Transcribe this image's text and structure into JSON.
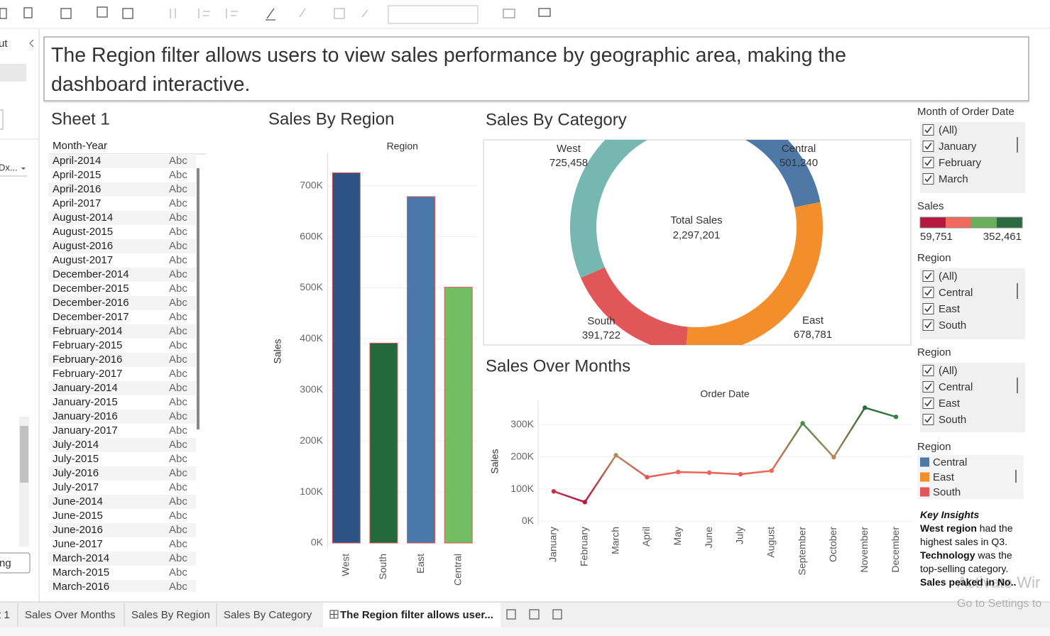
{
  "sidebar": {
    "labels": [
      "ut",
      "Dx...",
      "ng"
    ]
  },
  "header": {
    "text": "The Region filter allows users to view sales performance by geographic area, making the dashboard interactive."
  },
  "sheet": {
    "title": "Sheet 1",
    "column": "Month-Year",
    "rows": [
      [
        "April-2014",
        "Abc"
      ],
      [
        "April-2015",
        "Abc"
      ],
      [
        "April-2016",
        "Abc"
      ],
      [
        "April-2017",
        "Abc"
      ],
      [
        "August-2014",
        "Abc"
      ],
      [
        "August-2015",
        "Abc"
      ],
      [
        "August-2016",
        "Abc"
      ],
      [
        "August-2017",
        "Abc"
      ],
      [
        "December-2014",
        "Abc"
      ],
      [
        "December-2015",
        "Abc"
      ],
      [
        "December-2016",
        "Abc"
      ],
      [
        "December-2017",
        "Abc"
      ],
      [
        "February-2014",
        "Abc"
      ],
      [
        "February-2015",
        "Abc"
      ],
      [
        "February-2016",
        "Abc"
      ],
      [
        "February-2017",
        "Abc"
      ],
      [
        "January-2014",
        "Abc"
      ],
      [
        "January-2015",
        "Abc"
      ],
      [
        "January-2016",
        "Abc"
      ],
      [
        "January-2017",
        "Abc"
      ],
      [
        "July-2014",
        "Abc"
      ],
      [
        "July-2015",
        "Abc"
      ],
      [
        "July-2016",
        "Abc"
      ],
      [
        "July-2017",
        "Abc"
      ],
      [
        "June-2014",
        "Abc"
      ],
      [
        "June-2015",
        "Abc"
      ],
      [
        "June-2016",
        "Abc"
      ],
      [
        "June-2017",
        "Abc"
      ],
      [
        "March-2014",
        "Abc"
      ],
      [
        "March-2015",
        "Abc"
      ],
      [
        "March-2016",
        "Abc"
      ]
    ]
  },
  "chart_data": [
    {
      "type": "bar",
      "title": "Sales By Region",
      "header": "Region",
      "ylabel": "Sales",
      "categories": [
        "West",
        "South",
        "East",
        "Central"
      ],
      "values": [
        725458,
        391722,
        678781,
        501240
      ],
      "colors": [
        "#2c5384",
        "#23693b",
        "#4a78a9",
        "#73bd63"
      ],
      "outline": "#e15759",
      "ylim": [
        0,
        765000
      ],
      "yticks": [
        {
          "value": 0,
          "label": "0K"
        },
        {
          "value": 100000,
          "label": "100K"
        },
        {
          "value": 200000,
          "label": "200K"
        },
        {
          "value": 300000,
          "label": "300K"
        },
        {
          "value": 400000,
          "label": "400K"
        },
        {
          "value": 500000,
          "label": "500K"
        },
        {
          "value": 600000,
          "label": "600K"
        },
        {
          "value": 700000,
          "label": "700K"
        }
      ],
      "grid": true
    },
    {
      "type": "pie",
      "title": "Sales By Category",
      "categories": [
        "Central",
        "East",
        "South",
        "West"
      ],
      "values": [
        501240,
        678781,
        391722,
        725458
      ],
      "value_labels": [
        "501,240",
        "678,781",
        "391,722",
        "725,458"
      ],
      "colors": [
        "#4e79a7",
        "#f28e2b",
        "#e15759",
        "#76b7b2"
      ],
      "center_title": "Total Sales",
      "total": 2297201,
      "total_label": "2,297,201"
    },
    {
      "type": "line",
      "title": "Sales Over Months",
      "header": "Order Date",
      "ylabel": "Sales",
      "categories": [
        "January",
        "February",
        "March",
        "April",
        "May",
        "June",
        "July",
        "August",
        "September",
        "October",
        "November",
        "December"
      ],
      "values": [
        93000,
        59751,
        205000,
        137000,
        153000,
        151000,
        146000,
        157000,
        304000,
        199000,
        352461,
        324000
      ],
      "ylim": [
        0,
        362000
      ],
      "yticks": [
        {
          "value": 0,
          "label": "0K"
        },
        {
          "value": 100000,
          "label": "100K"
        },
        {
          "value": 200000,
          "label": "200K"
        },
        {
          "value": 300000,
          "label": "300K"
        }
      ],
      "grid": true
    }
  ],
  "filters": {
    "month": {
      "title": "Month of Order Date",
      "options": [
        "(All)",
        "January",
        "February",
        "March"
      ]
    },
    "color_legend": {
      "title": "Sales",
      "min": {
        "value": 59751,
        "label": "59,751"
      },
      "max": {
        "value": 352461,
        "label": "352,461"
      },
      "colors": [
        "#b5173e",
        "#f0695a",
        "#6aae5a",
        "#2a6b3f"
      ]
    },
    "regions": [
      {
        "title": "Region",
        "options": [
          "(All)",
          "Central",
          "East",
          "South"
        ]
      },
      {
        "title": "Region",
        "options": [
          "(All)",
          "Central",
          "East",
          "South"
        ]
      }
    ],
    "region_legend": {
      "title": "Region",
      "items": [
        {
          "name": "Central",
          "color": "#4e79a7"
        },
        {
          "name": "East",
          "color": "#f28e2b"
        },
        {
          "name": "South",
          "color": "#e15759"
        }
      ]
    }
  },
  "key_insights": {
    "title": "Key Insights",
    "paragraphs": [
      [
        {
          "text": "West region",
          "bold": true
        },
        {
          "text": " had the highest sales in Q3."
        }
      ],
      [
        {
          "text": "Technology",
          "bold": true
        },
        {
          "text": " was the top-selling category."
        }
      ],
      [
        {
          "text": "Sales peaked in No..",
          "bold": true
        }
      ]
    ]
  },
  "tabs": {
    "items": [
      "t 1",
      "Sales Over Months",
      "Sales By Region",
      "Sales By Category",
      "The Region filter allows user..."
    ],
    "active": 4
  },
  "watermark": [
    "Activate Wir",
    "Go to Settings to"
  ]
}
